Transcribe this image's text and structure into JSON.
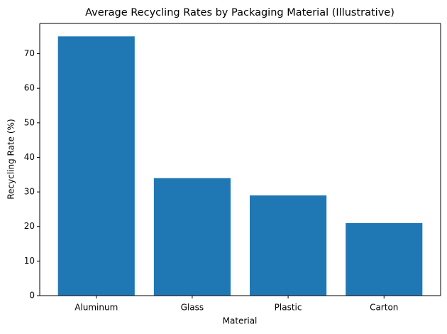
{
  "chart_data": {
    "type": "bar",
    "title": "Average Recycling Rates by Packaging Material (Illustrative)",
    "xlabel": "Material",
    "ylabel": "Recycling Rate (%)",
    "categories": [
      "Aluminum",
      "Glass",
      "Plastic",
      "Carton"
    ],
    "values": [
      75,
      34,
      29,
      21
    ],
    "color": "#1f77b4",
    "ylim": [
      0,
      78.75
    ],
    "yticks": [
      0,
      10,
      20,
      30,
      40,
      50,
      60,
      70
    ]
  }
}
